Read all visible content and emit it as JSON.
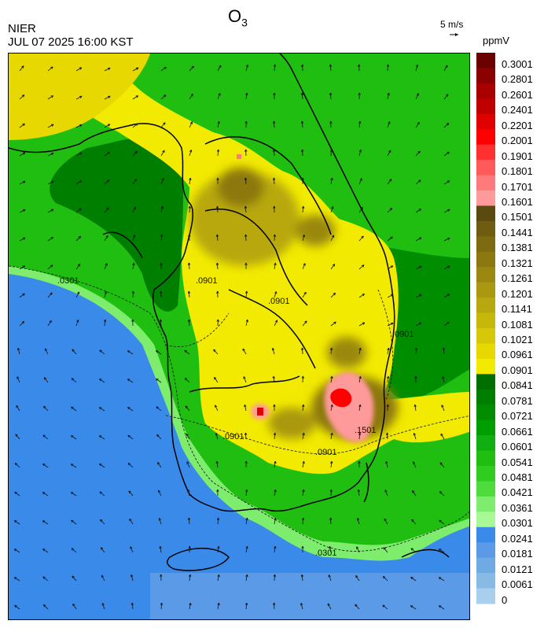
{
  "header": {
    "agency": "NIER",
    "timestamp": "JUL 07 2025 16:00 KST",
    "title_main": "O",
    "title_sub": "3",
    "wind_reference": "5 m/s",
    "unit": "ppmV"
  },
  "legend": {
    "labels": [
      "0.3001",
      "0.2801",
      "0.2601",
      "0.2401",
      "0.2201",
      "0.2001",
      "0.1901",
      "0.1801",
      "0.1701",
      "0.1601",
      "0.1501",
      "0.1441",
      "0.1381",
      "0.1321",
      "0.1261",
      "0.1201",
      "0.1141",
      "0.1081",
      "0.1021",
      "0.0961",
      "0.0901",
      "0.0841",
      "0.0781",
      "0.0721",
      "0.0661",
      "0.0601",
      "0.0541",
      "0.0481",
      "0.0421",
      "0.0361",
      "0.0301",
      "0.0241",
      "0.0181",
      "0.0121",
      "0.0061",
      "0"
    ],
    "colors": [
      "#6b0000",
      "#8b0000",
      "#a80000",
      "#c00000",
      "#e00000",
      "#ff0000",
      "#ff3030",
      "#ff5a5a",
      "#ff7a7a",
      "#ff9a9a",
      "#5a4a10",
      "#6e5c10",
      "#7e6a10",
      "#8c7810",
      "#9a8810",
      "#aa9810",
      "#b8a810",
      "#c6b80a",
      "#d6c808",
      "#e6d800",
      "#f2ea00",
      "#006e00",
      "#007e00",
      "#008e00",
      "#009e00",
      "#10ae10",
      "#20be10",
      "#30cc20",
      "#4edc3c",
      "#7eec6c",
      "#a8f898",
      "#3a8aea",
      "#5a9ae6",
      "#70aae2",
      "#88bae6",
      "#a8d0ee"
    ]
  },
  "contour_labels": [
    ".0301",
    ".0901",
    ".0901",
    ".0901",
    ".1501",
    ".0901",
    ".0901",
    ".0301"
  ]
}
